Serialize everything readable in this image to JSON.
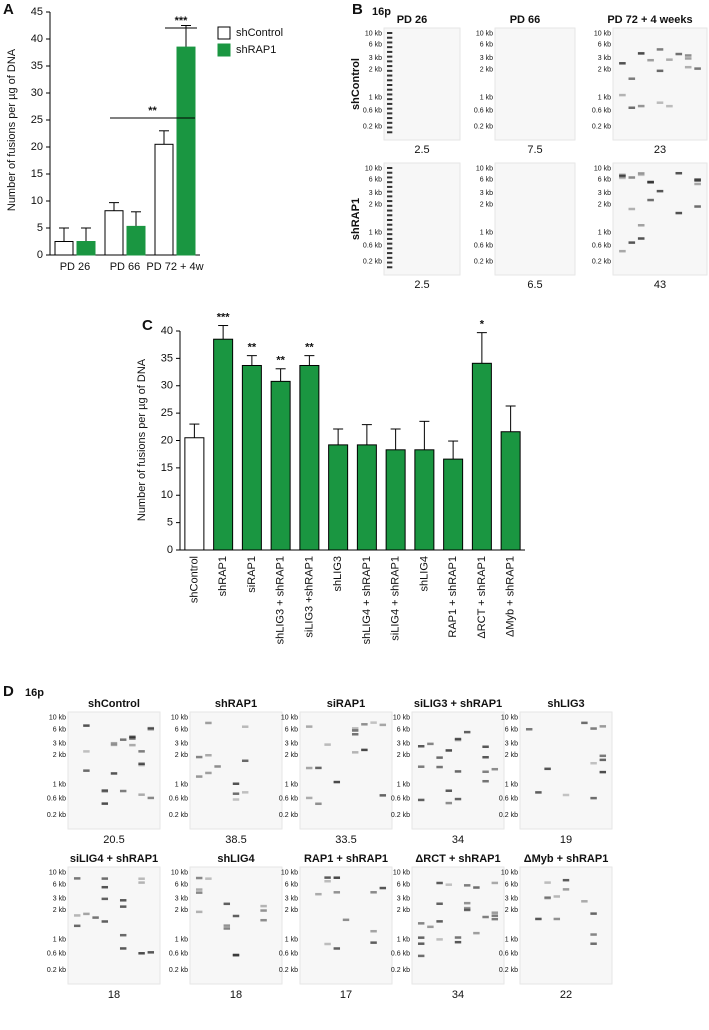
{
  "panel_labels": [
    "A",
    "B",
    "C",
    "D"
  ],
  "chart_data": [
    {
      "type": "bar",
      "ylabel": "Number of fusions per µg of DNA",
      "categories": [
        "PD 26",
        "PD 66",
        "PD 72 + 4w"
      ],
      "series": [
        {
          "name": "shControl",
          "color": "#ffffff",
          "edgecolor": "#000000",
          "values": [
            2.5,
            8.2,
            20.5
          ],
          "errors": [
            2.5,
            1.5,
            2.5
          ]
        },
        {
          "name": "shRAP1",
          "color": "#1a9641",
          "edgecolor": "#1a9641",
          "values": [
            2.5,
            5.3,
            38.5
          ],
          "errors": [
            2.5,
            2.7,
            4
          ]
        }
      ],
      "significance": [
        "**",
        "***"
      ],
      "ylim": [
        0,
        45
      ],
      "yticks": [
        0,
        5,
        10,
        15,
        20,
        25,
        30,
        35,
        40,
        45
      ]
    },
    {
      "type": "bar",
      "ylabel": "Number of fusions per µg of DNA",
      "categories": [
        "shControl",
        "shRAP1",
        "siRAP1",
        "shLIG3 + shRAP1",
        "siLIG3 +shRAP1",
        "shLIG3",
        "shLIG4 + shRAP1",
        "siLIG4 + shRAP1",
        "shLIG4",
        "RAP1 + shRAP1",
        "ΔRCT + shRAP1",
        "ΔMyb + shRAP1"
      ],
      "values": [
        20.5,
        38.5,
        33.7,
        30.8,
        33.7,
        19.2,
        19.2,
        18.3,
        18.3,
        16.6,
        34.1,
        21.6
      ],
      "errors": [
        2.5,
        2.5,
        1.8,
        2.3,
        1.8,
        2.9,
        3.7,
        3.8,
        5.2,
        3.3,
        5.6,
        4.7
      ],
      "colors": [
        "#ffffff",
        "#1a9641",
        "#1a9641",
        "#1a9641",
        "#1a9641",
        "#1a9641",
        "#1a9641",
        "#1a9641",
        "#1a9641",
        "#1a9641",
        "#1a9641",
        "#1a9641"
      ],
      "edgecolor": "#000000",
      "significance": [
        null,
        "***",
        "**",
        "**",
        "**",
        null,
        null,
        null,
        null,
        null,
        "*",
        null
      ],
      "ylim": [
        0,
        40
      ],
      "yticks": [
        0,
        5,
        10,
        15,
        20,
        25,
        30,
        35,
        40
      ]
    }
  ],
  "size_markers": [
    "10 kb",
    "6 kb",
    "3 kb",
    "2 kb",
    "1 kb",
    "0.6 kb",
    "0.2 kb"
  ],
  "blot_b": {
    "label": "16p",
    "lanes": [
      "PD 26",
      "PD 66",
      "PD 72 + 4 weeks"
    ],
    "rows": [
      {
        "name": "shControl",
        "counts": [
          2.5,
          7.5,
          23
        ]
      },
      {
        "name": "shRAP1",
        "counts": [
          2.5,
          6.5,
          43
        ]
      }
    ]
  },
  "blot_d": {
    "label": "16p",
    "gels": [
      {
        "title": "shControl",
        "count": 20.5
      },
      {
        "title": "shRAP1",
        "count": 38.5
      },
      {
        "title": "siRAP1",
        "count": 33.5
      },
      {
        "title": "siLIG3 + shRAP1",
        "count": 34
      },
      {
        "title": "shLIG3",
        "count": 19
      },
      {
        "title": "siLIG4 + shRAP1",
        "count": 18
      },
      {
        "title": "shLIG4",
        "count": 18
      },
      {
        "title": "RAP1 + shRAP1",
        "count": 17
      },
      {
        "title": "ΔRCT + shRAP1",
        "count": 34
      },
      {
        "title": "ΔMyb + shRAP1",
        "count": 22
      }
    ]
  }
}
